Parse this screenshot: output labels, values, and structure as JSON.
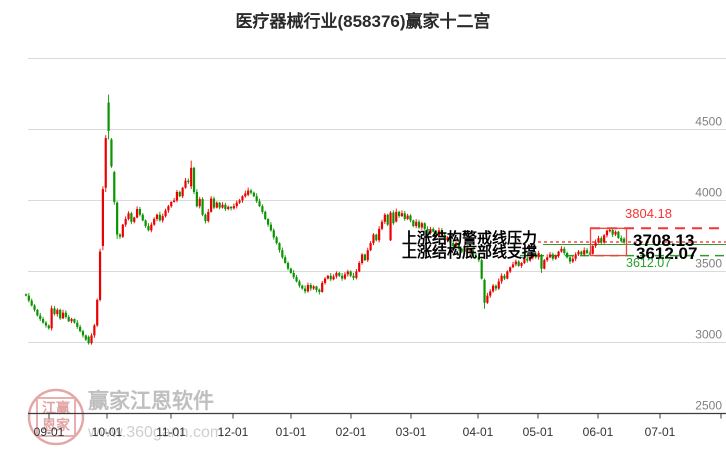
{
  "title": "医疗器械行业(858376)赢家十二宫",
  "watermark": {
    "stamp_row1": "江赢",
    "stamp_row2": "恩家",
    "line1": "赢家江恩软件",
    "line2": "www.360gann.com"
  },
  "annotations": {
    "pressure_label": "上涨结构警戒线压力",
    "support_label": "上涨结构底部线支撑",
    "upper_value": "3804.18",
    "mid_value": "3708.13",
    "lower_value": "3612.07",
    "lower_value_small": "3612.07"
  },
  "colors": {
    "up": "#ee0000",
    "down": "#0a9400",
    "grid": "#dadada",
    "axis_line": "#3c3c3c",
    "tick_label": "#333333",
    "y_label": "#808080",
    "resistance_dash": "#f53333",
    "warning_dot": "#f97777",
    "warning_solid": "#2e9e2e",
    "support_dash": "#2aa02a",
    "box": "#f34040",
    "annotation_text": "#000000",
    "level_value_red": "#f53333",
    "level_value_green": "#2aa02a",
    "watermark_text": "#b5b5b5",
    "watermark_url": "#c6c6c6",
    "stamp": "#e09898",
    "title": "#2a2a2a"
  },
  "chart_data": {
    "type": "candlestick",
    "title": "医疗器械行业(858376)赢家十二宫",
    "x_tick_labels": [
      "09-01",
      "10-01",
      "11-01",
      "12-01",
      "01-01",
      "02-01",
      "03-01",
      "04-01",
      "05-01",
      "06-01",
      "07-01"
    ],
    "y_tick_labels": [
      "4500",
      "4000",
      "3500",
      "3000",
      "2500"
    ],
    "y_range": [
      2500,
      5000
    ],
    "y_step": 500,
    "grid": true,
    "levels": {
      "resistance": 3804.18,
      "warning": 3708.13,
      "support": 3612.07
    },
    "highlight_box": {
      "price_top": 3804.18,
      "price_bottom": 3612.07
    },
    "first_open": 3340,
    "closes": [
      3330,
      3295,
      3260,
      3230,
      3190,
      3165,
      3140,
      3120,
      3100,
      3240,
      3200,
      3230,
      3170,
      3210,
      3180,
      3150,
      3165,
      3140,
      3110,
      3080,
      3050,
      3020,
      2995,
      3050,
      3120,
      3300,
      3640,
      4080,
      4440,
      4490,
      4240,
      3990,
      3760,
      3745,
      3830,
      3870,
      3910,
      3850,
      3880,
      3940,
      3900,
      3860,
      3820,
      3790,
      3830,
      3870,
      3900,
      3860,
      3890,
      3930,
      3960,
      3990,
      4000,
      4060,
      4030,
      4090,
      4140,
      4130,
      4230,
      4060,
      3960,
      4010,
      3900,
      3855,
      3920,
      4014,
      3950,
      3985,
      3950,
      3970,
      3940,
      3955,
      3945,
      3960,
      3985,
      4000,
      4030,
      4050,
      4070,
      4055,
      4030,
      3995,
      3960,
      3920,
      3870,
      3830,
      3790,
      3740,
      3700,
      3650,
      3600,
      3560,
      3520,
      3490,
      3460,
      3430,
      3400,
      3380,
      3360,
      3405,
      3380,
      3395,
      3370,
      3356,
      3420,
      3450,
      3470,
      3445,
      3465,
      3490,
      3470,
      3450,
      3480,
      3500,
      3470,
      3455,
      3500,
      3560,
      3620,
      3580,
      3650,
      3700,
      3760,
      3720,
      3800,
      3850,
      3900,
      3830,
      3915,
      3840,
      3920,
      3890,
      3910,
      3870,
      3894,
      3860,
      3820,
      3850,
      3810,
      3840,
      3800,
      3770,
      3800,
      3780,
      3750,
      3790,
      3760,
      3720,
      3740,
      3700,
      3680,
      3700,
      3660,
      3640,
      3670,
      3630,
      3650,
      3610,
      3600,
      3580,
      3450,
      3280,
      3330,
      3360,
      3400,
      3380,
      3430,
      3470,
      3450,
      3500,
      3530,
      3550,
      3570,
      3540,
      3560,
      3590,
      3577,
      3600,
      3620,
      3600,
      3630,
      3520,
      3580,
      3600,
      3620,
      3590,
      3610,
      3640,
      3660,
      3630,
      3600,
      3570,
      3590,
      3620,
      3640,
      3620,
      3650,
      3630,
      3625,
      3680,
      3705,
      3735,
      3705,
      3755,
      3788,
      3792,
      3760,
      3780,
      3735,
      3715,
      3708
    ],
    "ohlc_overrides": {
      "22": [
        3040,
        3050,
        2985,
        2995
      ],
      "25": [
        3120,
        3310,
        3110,
        3300
      ],
      "26": [
        3300,
        3660,
        3290,
        3640
      ],
      "27": [
        3680,
        4100,
        3650,
        4080
      ],
      "28": [
        4090,
        4460,
        4060,
        4440
      ],
      "29": [
        4690,
        4746,
        4430,
        4490
      ],
      "30": [
        4430,
        4440,
        4230,
        4240
      ],
      "31": [
        4200,
        4210,
        3970,
        3990
      ],
      "32": [
        3985,
        3995,
        3730,
        3760
      ],
      "58": [
        4100,
        4281,
        4080,
        4230
      ],
      "78": [
        4040,
        4091,
        4030,
        4070
      ],
      "103": [
        3372,
        3380,
        3338,
        3356
      ],
      "128": [
        3720,
        3925,
        3715,
        3915
      ],
      "130": [
        3852,
        3943,
        3845,
        3920
      ],
      "161": [
        3440,
        3450,
        3238,
        3280
      ],
      "181": [
        3618,
        3622,
        3490,
        3520
      ],
      "205": [
        3785,
        3804,
        3775,
        3792
      ],
      "210": [
        3730,
        3742,
        3695,
        3708
      ]
    }
  }
}
